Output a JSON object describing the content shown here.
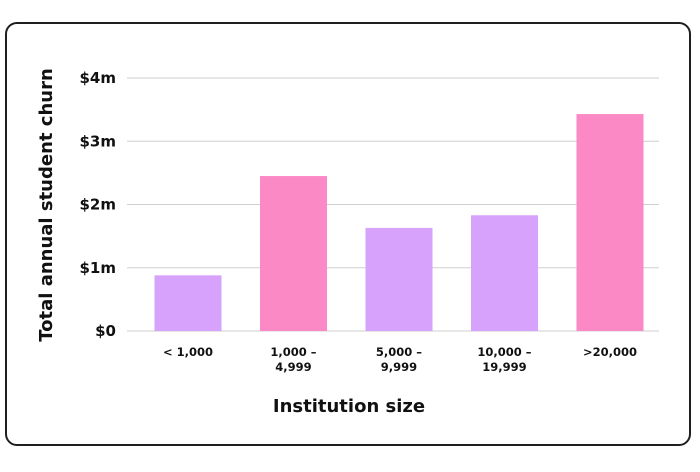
{
  "chart_data": {
    "type": "bar",
    "title": "",
    "xlabel": "Institution size",
    "ylabel": "Total annual student churn",
    "categories": [
      [
        "< 1,000"
      ],
      [
        "1,000 –",
        "4,999"
      ],
      [
        "5,000 –",
        "9,999"
      ],
      [
        "10,000 –",
        "19,999"
      ],
      [
        ">20,000"
      ]
    ],
    "values": [
      0.88,
      2.45,
      1.63,
      1.83,
      3.43
    ],
    "ylim": [
      0,
      4
    ],
    "yticks": [
      0,
      1,
      2,
      3,
      4
    ],
    "ytick_labels": [
      "$0",
      "$1m",
      "$2m",
      "$3m",
      "$4m"
    ],
    "unit": "$m",
    "grid": true,
    "colors": {
      "bars": [
        "#d6a2fb",
        "#fb89c6",
        "#d6a2fb",
        "#d6a2fb",
        "#fb89c6"
      ],
      "grid": "#cfcfcf",
      "text": "#111111"
    }
  }
}
